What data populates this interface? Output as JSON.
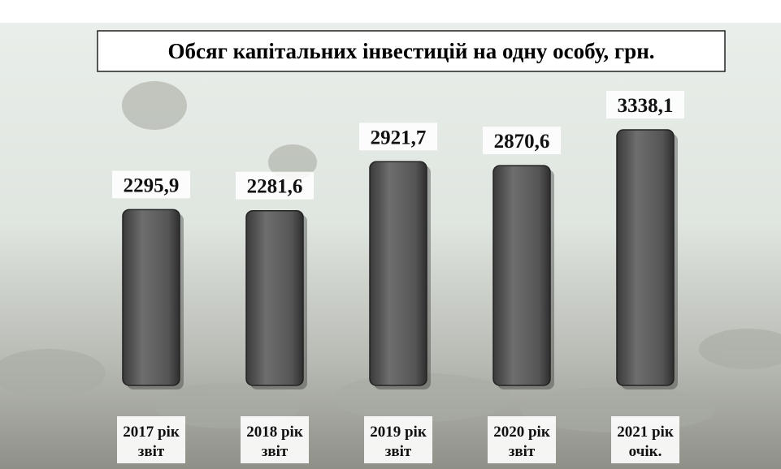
{
  "chart_data": {
    "type": "bar",
    "title": "Обсяг капітальних інвестицій на одну особу, грн.",
    "categories": [
      "2017 рік\nзвіт",
      "2018 рік\nзвіт",
      "2019 рік\nзвіт",
      "2020 рік\nзвіт",
      "2021 рік\nочік."
    ],
    "values": [
      2295.9,
      2281.6,
      2921.7,
      2870.6,
      3338.1
    ],
    "value_labels": [
      "2295,9",
      "2281,6",
      "2921,7",
      "2870,6",
      "3338,1"
    ],
    "color": "#5a5a5a"
  }
}
